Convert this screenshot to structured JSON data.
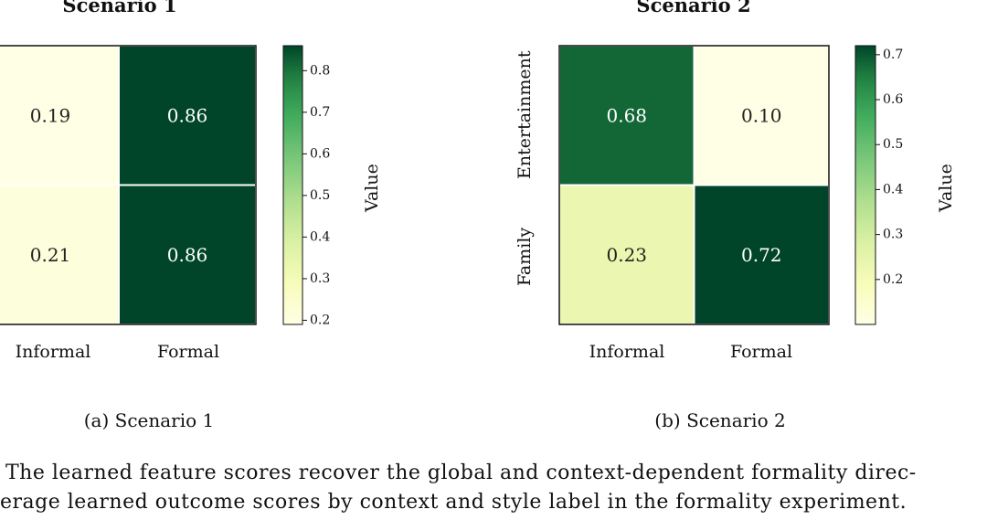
{
  "chart_data": [
    {
      "type": "heatmap",
      "title": "Scenario 1",
      "x_categories": [
        "Informal",
        "Formal"
      ],
      "y_categories": [
        "",
        ""
      ],
      "values": [
        [
          0.19,
          0.86
        ],
        [
          0.21,
          0.86
        ]
      ],
      "colorbar": {
        "label": "Value",
        "ticks": [
          0.2,
          0.3,
          0.4,
          0.5,
          0.6,
          0.7,
          0.8
        ],
        "range": [
          0.19,
          0.86
        ]
      },
      "colormap": "Greens-YlGn"
    },
    {
      "type": "heatmap",
      "title": "Scenario 2",
      "x_categories": [
        "Informal",
        "Formal"
      ],
      "y_categories": [
        "Entertainment",
        "Family"
      ],
      "values": [
        [
          0.68,
          0.1
        ],
        [
          0.23,
          0.72
        ]
      ],
      "colorbar": {
        "label": "Value",
        "ticks": [
          0.2,
          0.3,
          0.4,
          0.5,
          0.6,
          0.7
        ],
        "range": [
          0.1,
          0.72
        ]
      },
      "colormap": "Greens-YlGn"
    }
  ],
  "captions": {
    "a": "(a) Scenario 1",
    "b": "(b) Scenario 2",
    "line1": "The learned feature scores recover the global and context-dependent formality direc-",
    "line2": "erage learned outcome scores by context and style label in the formality experiment."
  }
}
